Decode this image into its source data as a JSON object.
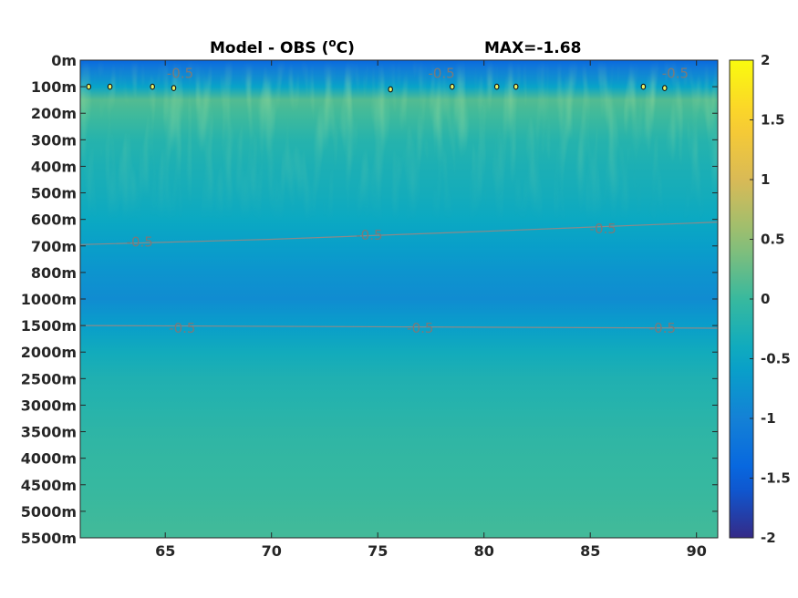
{
  "chart_data": {
    "type": "heatmap",
    "title": "Model - OBS (",
    "title_unit_super": "o",
    "title_unit_tail": "C)",
    "annotation": "MAX=-1.68",
    "colormap": "parula",
    "clim": [
      -2,
      2
    ],
    "x_ticks": [
      "65",
      "70",
      "75",
      "80",
      "85",
      "90"
    ],
    "x_tick_values": [
      65,
      70,
      75,
      80,
      85,
      90
    ],
    "xlim": [
      61,
      91
    ],
    "y_ticks": [
      "0m",
      "100m",
      "200m",
      "300m",
      "400m",
      "500m",
      "600m",
      "700m",
      "800m",
      "1000m",
      "1500m",
      "2000m",
      "2500m",
      "3000m",
      "3500m",
      "4000m",
      "4500m",
      "5000m",
      "5500m"
    ],
    "colorbar_ticks": [
      "2",
      "1.5",
      "1",
      "0.5",
      "0",
      "-0.5",
      "-1",
      "-1.5",
      "-2"
    ],
    "colorbar_values": [
      2,
      1.5,
      1,
      0.5,
      0,
      -0.5,
      -1,
      -1.5,
      -2
    ],
    "depth_profile": [
      {
        "level": 0,
        "value": -1.4
      },
      {
        "level": 0.3,
        "value": -1.1
      },
      {
        "level": 0.7,
        "value": -0.8
      },
      {
        "level": 1,
        "value": -0.55
      },
      {
        "level": 1.5,
        "value": 0.15
      },
      {
        "level": 2,
        "value": 0.05
      },
      {
        "level": 3,
        "value": -0.18
      },
      {
        "level": 4,
        "value": -0.28
      },
      {
        "level": 5,
        "value": -0.35
      },
      {
        "level": 6,
        "value": -0.45
      },
      {
        "level": 7,
        "value": -0.6
      },
      {
        "level": 8,
        "value": -0.75
      },
      {
        "level": 9,
        "value": -0.85
      },
      {
        "level": 10,
        "value": -0.62
      },
      {
        "level": 11,
        "value": -0.38
      },
      {
        "level": 12,
        "value": -0.24
      },
      {
        "level": 13,
        "value": -0.18
      },
      {
        "level": 14,
        "value": -0.1
      },
      {
        "level": 15,
        "value": -0.05
      },
      {
        "level": 16,
        "value": -0.02
      },
      {
        "level": 17,
        "value": 0.02
      },
      {
        "level": 18,
        "value": 0.06
      }
    ],
    "contour_value": "-0.5",
    "contour_labels": [
      {
        "x": 65.7,
        "level": 0.5,
        "text": "-0.5"
      },
      {
        "x": 78.0,
        "level": 0.5,
        "text": "-0.5"
      },
      {
        "x": 89.0,
        "level": 0.5,
        "text": "-0.5"
      },
      {
        "x": 63.8,
        "level": 6.85,
        "text": "-0.5"
      },
      {
        "x": 74.6,
        "level": 6.6,
        "text": "-0.5"
      },
      {
        "x": 85.6,
        "level": 6.35,
        "text": "-0.5"
      },
      {
        "x": 65.8,
        "level": 10.1,
        "text": "-0.5"
      },
      {
        "x": 77.0,
        "level": 10.1,
        "text": "-0.5"
      },
      {
        "x": 88.4,
        "level": 10.1,
        "text": "-0.5"
      }
    ],
    "contour_lines": [
      {
        "points": [
          [
            61,
            6.95
          ],
          [
            70,
            6.75
          ],
          [
            80,
            6.45
          ],
          [
            91,
            6.1
          ]
        ]
      },
      {
        "points": [
          [
            61,
            10.0
          ],
          [
            91,
            10.1
          ]
        ]
      }
    ],
    "markers": [
      {
        "x": 61.4,
        "level": 1.0
      },
      {
        "x": 62.4,
        "level": 1.0
      },
      {
        "x": 64.4,
        "level": 1.0
      },
      {
        "x": 65.4,
        "level": 1.05
      },
      {
        "x": 75.6,
        "level": 1.1
      },
      {
        "x": 78.5,
        "level": 1.0
      },
      {
        "x": 80.6,
        "level": 1.0
      },
      {
        "x": 81.5,
        "level": 1.0
      },
      {
        "x": 87.5,
        "level": 1.0
      },
      {
        "x": 88.5,
        "level": 1.05
      }
    ]
  }
}
